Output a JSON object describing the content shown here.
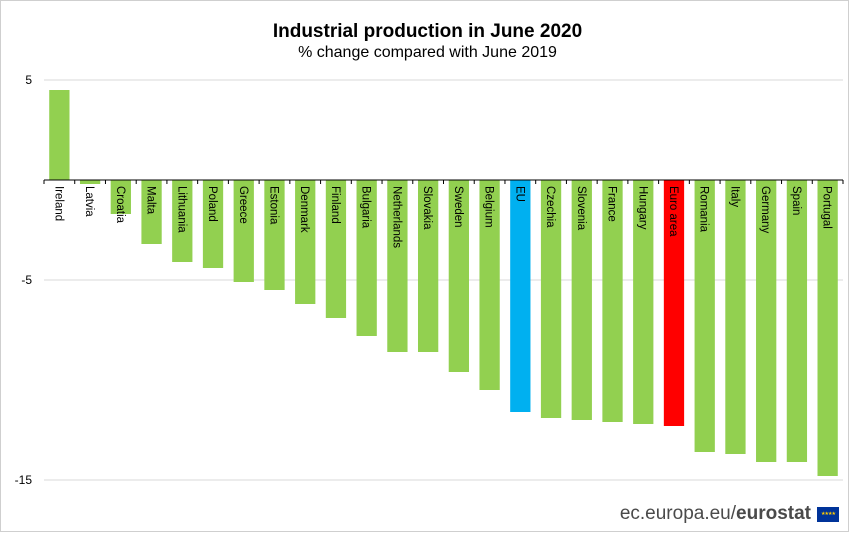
{
  "chart_data": {
    "type": "bar",
    "title": "Industrial production in June 2020",
    "subtitle": "% change compared with June 2019",
    "xlabel": "",
    "ylabel": "",
    "ylim": [
      -15,
      5
    ],
    "yticks": [
      5,
      -5,
      -15
    ],
    "grid": true,
    "categories": [
      "Ireland",
      "Latvia",
      "Croatia",
      "Malta",
      "Lithuania",
      "Poland",
      "Greece",
      "Estonia",
      "Denmark",
      "Finland",
      "Bulgaria",
      "Netherlands",
      "Slovakia",
      "Sweden",
      "Belgium",
      "EU",
      "Czechia",
      "Slovenia",
      "France",
      "Hungary",
      "Euro area",
      "Romania",
      "Italy",
      "Germany",
      "Spain",
      "Portugal"
    ],
    "values": [
      4.5,
      -0.2,
      -1.7,
      -3.2,
      -4.1,
      -4.4,
      -5.1,
      -5.5,
      -6.2,
      -6.9,
      -7.8,
      -8.6,
      -8.6,
      -9.6,
      -10.5,
      -11.6,
      -11.9,
      -12.0,
      -12.1,
      -12.2,
      -12.3,
      -13.6,
      -13.7,
      -14.1,
      -14.1,
      -14.8
    ],
    "colors": {
      "default": "#92d050",
      "EU": "#00b0f0",
      "Euro area": "#ff0000",
      "axis": "#000000",
      "grid": "#d9d9d9"
    }
  },
  "footer": {
    "url": "ec.europa.eu/",
    "brand": "eurostat",
    "flag_icon": "eu-flag-icon"
  }
}
